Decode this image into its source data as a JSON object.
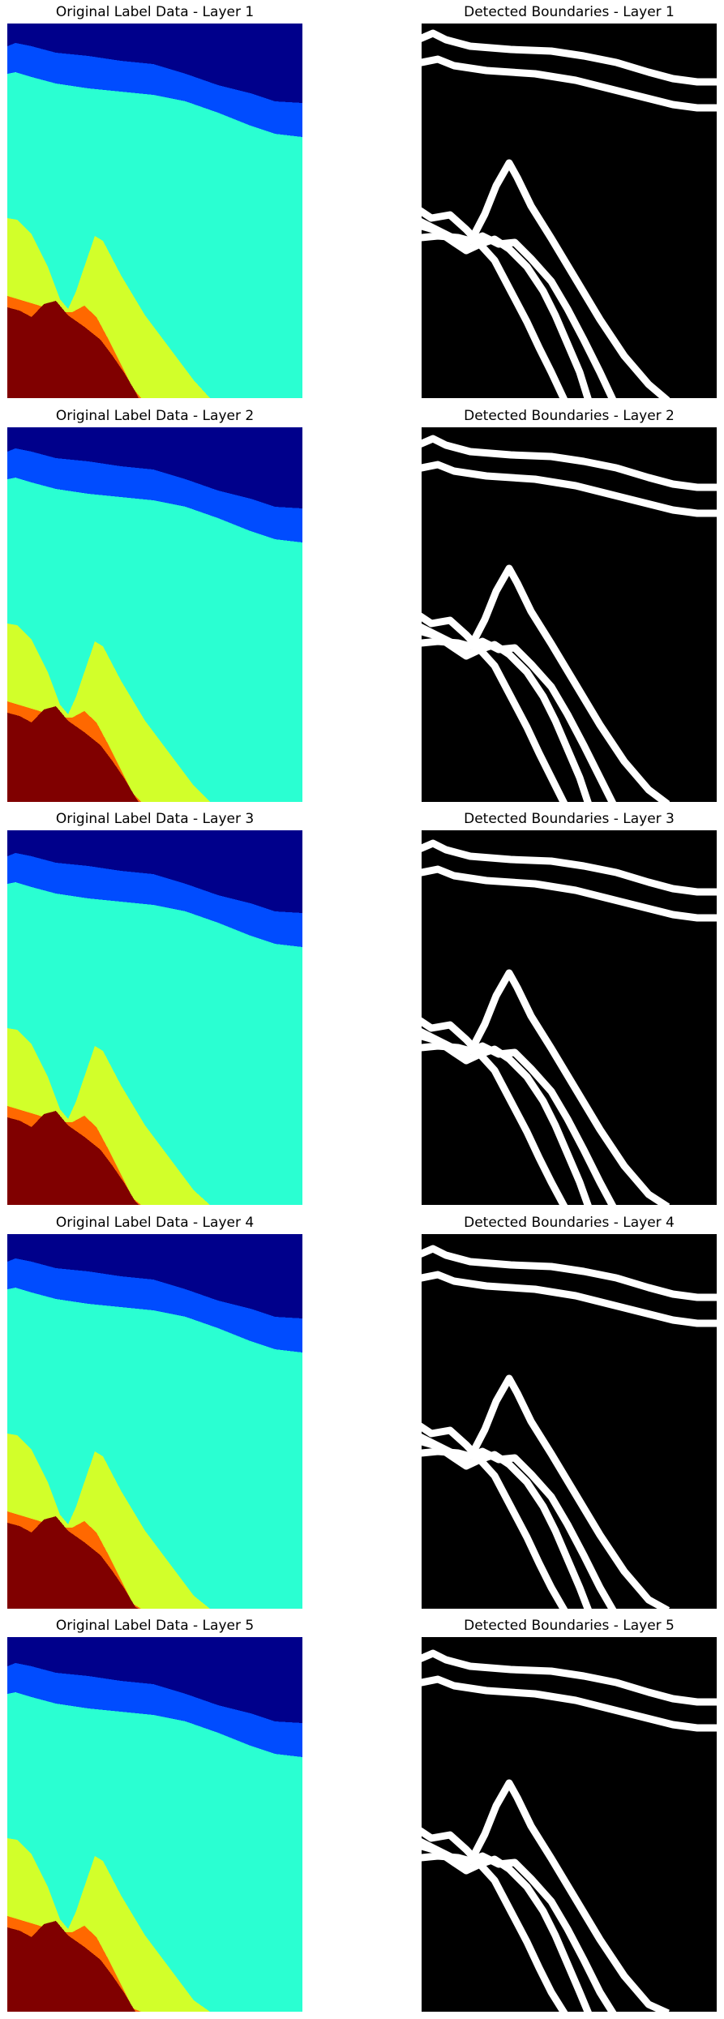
{
  "rows": [
    {
      "left_title": "Original Label Data - Layer 1",
      "right_title": "Detected Boundaries - Layer 1"
    },
    {
      "left_title": "Original Label Data - Layer 2",
      "right_title": "Detected Boundaries - Layer 2"
    },
    {
      "left_title": "Original Label Data - Layer 3",
      "right_title": "Detected Boundaries - Layer 3"
    },
    {
      "left_title": "Original Label Data - Layer 4",
      "right_title": "Detected Boundaries - Layer 4"
    },
    {
      "left_title": "Original Label Data - Layer 5",
      "right_title": "Detected Boundaries - Layer 5"
    }
  ],
  "colors": {
    "dark_blue": "#00008b",
    "blue": "#004cff",
    "cyan": "#2affd2",
    "yellow": "#d2ff2a",
    "orange": "#ff6800",
    "maroon": "#800000",
    "boundary_background": "#000000",
    "boundary_line": "#ffffff"
  }
}
